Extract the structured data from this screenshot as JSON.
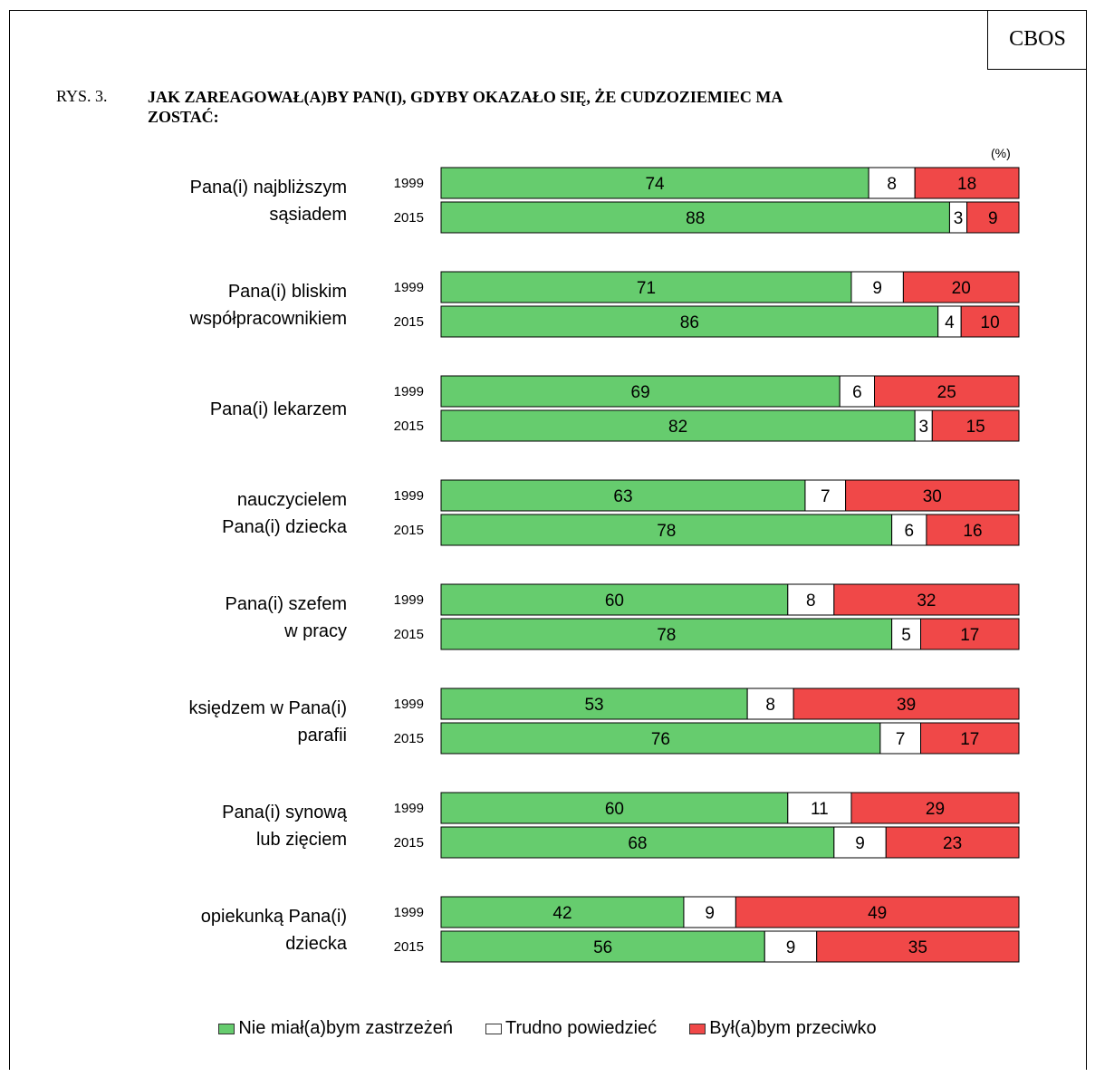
{
  "header": {
    "brand": "CBOS",
    "figure_label": "RYS. 3.",
    "title": "JAK ZAREAGOWAŁ(A)BY PAN(I), GDYBY OKAZAŁO SIĘ, ŻE CUDZOZIEMIEC MA ZOSTAĆ:",
    "unit": "(%)"
  },
  "colors": {
    "accept": "#66cc6e",
    "hard": "#ffffff",
    "against": "#f04848"
  },
  "chart_data": {
    "type": "bar",
    "orientation": "horizontal-stacked-100",
    "title": "JAK ZAREAGOWAŁ(A)BY PAN(I), GDYBY OKAZAŁO SIĘ, ŻE CUDZOZIEMIEC MA ZOSTAĆ:",
    "unit": "(%)",
    "series_names": [
      "Nie miał(a)bym zastrzeżeń",
      "Trudno powiedzieć",
      "Był(a)bym przeciwko"
    ],
    "groups": [
      {
        "label": [
          "Pana(i) najbliższym",
          "sąsiadem"
        ],
        "rows": [
          {
            "year": "1999",
            "values": [
              74,
              8,
              18
            ]
          },
          {
            "year": "2015",
            "values": [
              88,
              3,
              9
            ]
          }
        ]
      },
      {
        "label": [
          "Pana(i) bliskim",
          "współpracownikiem"
        ],
        "rows": [
          {
            "year": "1999",
            "values": [
              71,
              9,
              20
            ]
          },
          {
            "year": "2015",
            "values": [
              86,
              4,
              10
            ]
          }
        ]
      },
      {
        "label": [
          "Pana(i) lekarzem"
        ],
        "rows": [
          {
            "year": "1999",
            "values": [
              69,
              6,
              25
            ]
          },
          {
            "year": "2015",
            "values": [
              82,
              3,
              15
            ]
          }
        ]
      },
      {
        "label": [
          "nauczycielem",
          "Pana(i) dziecka"
        ],
        "rows": [
          {
            "year": "1999",
            "values": [
              63,
              7,
              30
            ]
          },
          {
            "year": "2015",
            "values": [
              78,
              6,
              16
            ]
          }
        ]
      },
      {
        "label": [
          "Pana(i) szefem",
          "w pracy"
        ],
        "rows": [
          {
            "year": "1999",
            "values": [
              60,
              8,
              32
            ]
          },
          {
            "year": "2015",
            "values": [
              78,
              5,
              17
            ]
          }
        ]
      },
      {
        "label": [
          "księdzem w Pana(i)",
          "parafii"
        ],
        "rows": [
          {
            "year": "1999",
            "values": [
              53,
              8,
              39
            ]
          },
          {
            "year": "2015",
            "values": [
              76,
              7,
              17
            ]
          }
        ]
      },
      {
        "label": [
          "Pana(i) synową",
          "lub zięciem"
        ],
        "rows": [
          {
            "year": "1999",
            "values": [
              60,
              11,
              29
            ]
          },
          {
            "year": "2015",
            "values": [
              68,
              9,
              23
            ]
          }
        ]
      },
      {
        "label": [
          "opiekunką Pana(i)",
          "dziecka"
        ],
        "rows": [
          {
            "year": "1999",
            "values": [
              42,
              9,
              49
            ]
          },
          {
            "year": "2015",
            "values": [
              56,
              9,
              35
            ]
          }
        ]
      }
    ],
    "xlim": [
      0,
      100
    ]
  },
  "legend": {
    "accept": "Nie miał(a)bym zastrzeżeń",
    "hard": "Trudno powiedzieć",
    "against": "Był(a)bym przeciwko"
  }
}
